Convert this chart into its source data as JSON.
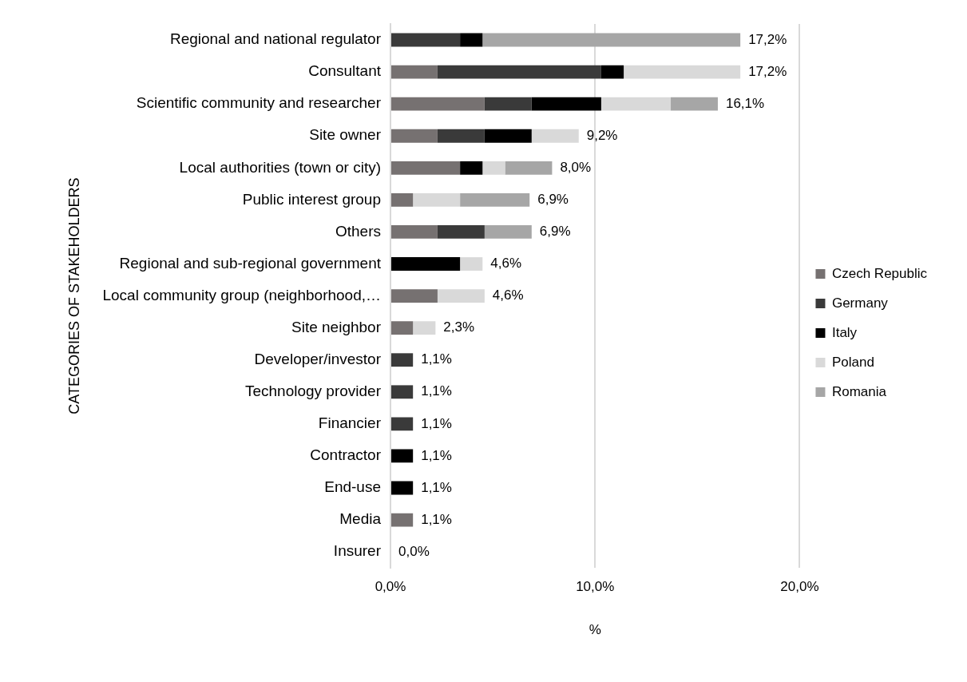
{
  "chart_data": {
    "type": "bar",
    "orientation": "horizontal",
    "stacked": true,
    "categories": [
      "Regional and national regulator",
      "Consultant",
      "Scientific community and researcher",
      "Site owner",
      "Local authorities (town or city)",
      "Public interest group",
      "Others",
      "Regional and sub-regional government",
      "Local community group (neighborhood,…",
      "Site neighbor",
      "Developer/investor",
      "Technology provider",
      "Financier",
      "Contractor",
      "End-use",
      "Media",
      "Insurer"
    ],
    "series": [
      {
        "name": "Czech Republic",
        "color": "#767171",
        "values": [
          null,
          2.3,
          4.6,
          2.3,
          3.4,
          1.1,
          2.3,
          null,
          2.3,
          1.1,
          null,
          null,
          null,
          null,
          null,
          1.1,
          null
        ]
      },
      {
        "name": "Germany",
        "color": "#3a3a3a",
        "values": [
          3.4,
          8.0,
          2.3,
          2.3,
          null,
          null,
          2.3,
          null,
          null,
          null,
          1.1,
          1.1,
          1.1,
          null,
          null,
          null,
          null
        ]
      },
      {
        "name": "Italy",
        "color": "#000000",
        "values": [
          1.1,
          1.1,
          3.4,
          2.3,
          1.1,
          null,
          null,
          3.4,
          null,
          null,
          null,
          null,
          null,
          1.1,
          1.1,
          null,
          null
        ]
      },
      {
        "name": "Poland",
        "color": "#d9d9d9",
        "values": [
          null,
          5.7,
          3.4,
          2.3,
          1.1,
          2.3,
          null,
          1.1,
          2.3,
          1.1,
          null,
          null,
          null,
          null,
          null,
          null,
          null
        ]
      },
      {
        "name": "Romania",
        "color": "#a6a6a6",
        "values": [
          12.6,
          null,
          2.3,
          null,
          2.3,
          3.4,
          2.3,
          null,
          null,
          null,
          null,
          null,
          null,
          null,
          null,
          null,
          null
        ]
      }
    ],
    "totals": [
      "17,2%",
      "17,2%",
      "16,1%",
      "9,2%",
      "8,0%",
      "6,9%",
      "6,9%",
      "4,6%",
      "4,6%",
      "2,3%",
      "1,1%",
      "1,1%",
      "1,1%",
      "1,1%",
      "1,1%",
      "1,1%",
      "0,0%"
    ],
    "xlim": [
      0,
      20
    ],
    "xticks": [
      {
        "value": 0,
        "label": "0,0%"
      },
      {
        "value": 10,
        "label": "10,0%"
      },
      {
        "value": 20,
        "label": "20,0%"
      }
    ],
    "xlabel": "%",
    "ylabel": "CATEGORIES OF STAKEHOLDERS",
    "grid": "x",
    "legend": "right"
  }
}
